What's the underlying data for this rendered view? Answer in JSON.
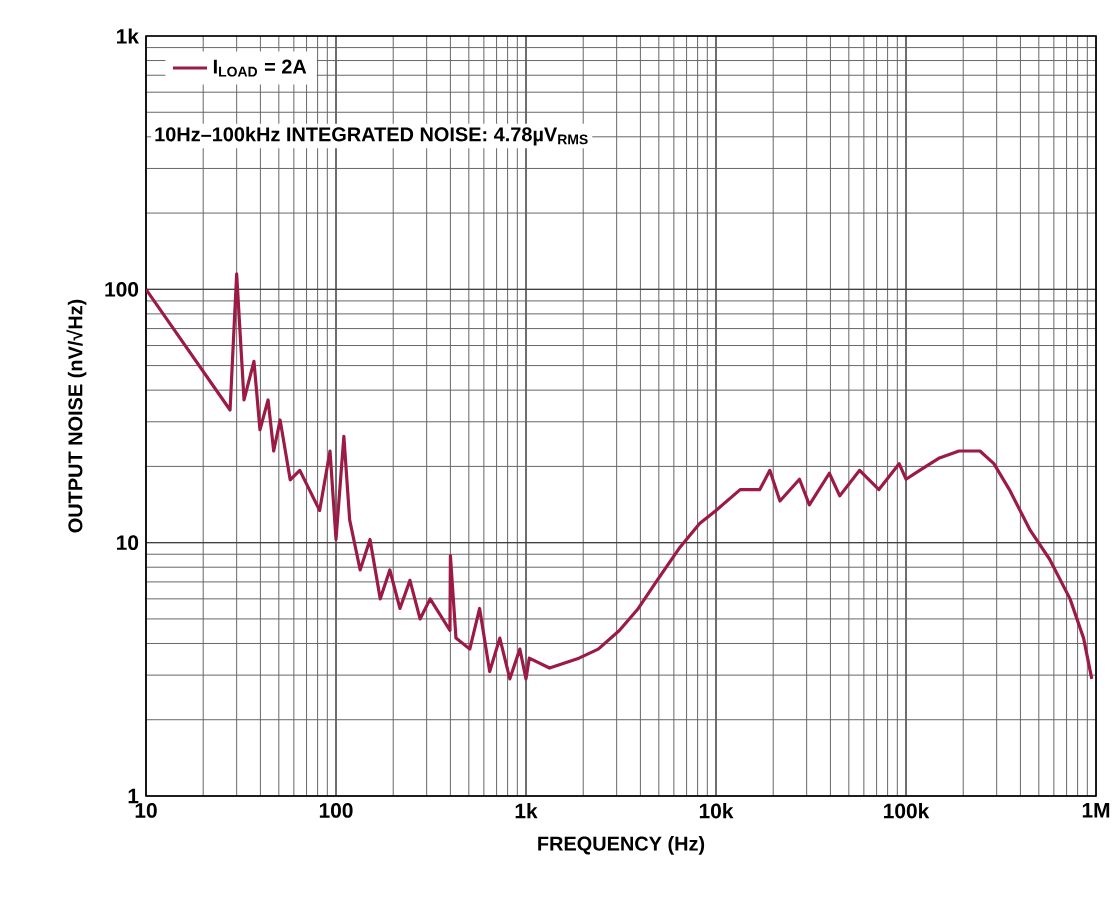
{
  "chart_data": {
    "type": "line",
    "xlabel": "FREQUENCY (Hz)",
    "ylabel": "OUTPUT NOISE (nV/√Hz)",
    "log": "xy",
    "grid": true,
    "legend": "top left",
    "annotations": [
      "10Hz–100kHz INTEGRATED NOISE: 4.78µV$_{RMS}$"
    ],
    "xlim": [
      10,
      1000000
    ],
    "ylim": [
      1,
      1000
    ],
    "xticks": [
      10,
      100,
      {
        "value": 1000,
        "label": "1k"
      },
      {
        "value": 10000,
        "label": "10k"
      },
      {
        "value": 100000,
        "label": "100k"
      },
      {
        "value": 1000000,
        "label": "1M"
      }
    ],
    "yticks": [
      1,
      10,
      100,
      {
        "value": 1000,
        "label": "1k"
      }
    ],
    "series": [
      {
        "name": "I$_{LOAD}$ = 2A",
        "color": "#9b1b45",
        "x": [
          10,
          27.7,
          30,
          32.8,
          37,
          39.8,
          43.9,
          47,
          50.8,
          57.4,
          64.5,
          82,
          93,
          100,
          110,
          118,
          134,
          151,
          171,
          192,
          217,
          245,
          277,
          313,
          398,
          400,
          428,
          506,
          570,
          644,
          728,
          822,
          928,
          1000,
          1040,
          1330,
          1900,
          2400,
          3100,
          3900,
          4900,
          6400,
          8200,
          10000,
          13400,
          17000,
          19200,
          21700,
          27500,
          31000,
          39500,
          44800,
          57000,
          72000,
          92000,
          100000,
          118000,
          150000,
          190000,
          245000,
          290000,
          350000,
          450000,
          570000,
          730000,
          860000,
          950000
        ],
        "values": [
          100,
          33.4,
          115,
          36.6,
          52,
          27.9,
          36.6,
          23,
          30.5,
          17.7,
          19.3,
          13.4,
          23,
          10.3,
          26.3,
          12.3,
          7.8,
          10.3,
          6.0,
          7.8,
          5.5,
          7.1,
          5.0,
          6.0,
          4.5,
          8.9,
          4.2,
          3.8,
          5.5,
          3.1,
          4.2,
          2.9,
          3.8,
          2.9,
          3.5,
          3.2,
          3.5,
          3.8,
          4.5,
          5.5,
          7.1,
          9.5,
          11.9,
          13.4,
          16.2,
          16.2,
          19.3,
          14.6,
          17.8,
          14.1,
          18.8,
          15.3,
          19.3,
          16.2,
          20.5,
          17.8,
          19.3,
          21.6,
          23,
          23,
          20.5,
          16.2,
          11.2,
          8.6,
          6.0,
          4.2,
          2.9
        ]
      }
    ]
  }
}
